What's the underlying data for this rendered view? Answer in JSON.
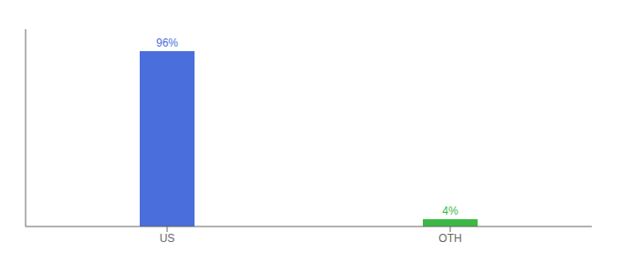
{
  "chart_data": {
    "type": "bar",
    "categories": [
      "US",
      "OTH"
    ],
    "values": [
      96,
      4
    ],
    "value_labels": [
      "96%",
      "4%"
    ],
    "colors": [
      "#4a6edb",
      "#3cb944"
    ],
    "ylim": [
      0,
      108
    ],
    "data_labels": true,
    "tick_labels": "x"
  }
}
